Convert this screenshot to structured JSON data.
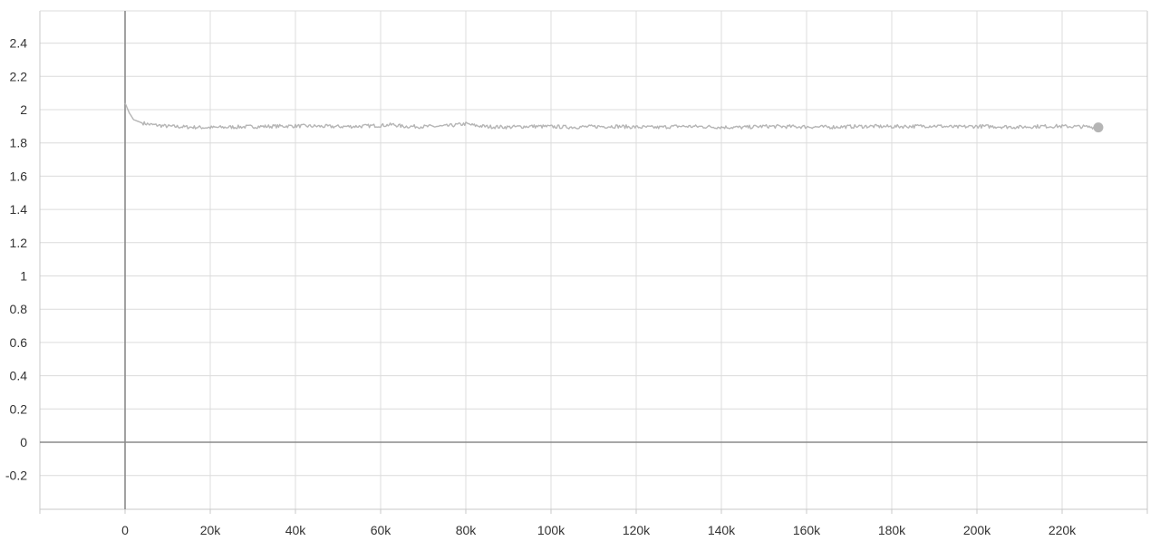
{
  "chart_data": {
    "type": "line",
    "title": "",
    "xlabel": "",
    "ylabel": "",
    "xlim": [
      -20000,
      240000
    ],
    "ylim": [
      -0.4,
      2.6
    ],
    "grid": true,
    "legend": "none",
    "x_ticks": [
      0,
      20000,
      40000,
      60000,
      80000,
      100000,
      120000,
      140000,
      160000,
      180000,
      200000,
      220000
    ],
    "x_tick_labels": [
      "0",
      "20k",
      "40k",
      "60k",
      "80k",
      "100k",
      "120k",
      "140k",
      "160k",
      "180k",
      "200k",
      "220k"
    ],
    "y_ticks": [
      -0.2,
      0,
      0.2,
      0.4,
      0.6,
      0.8,
      1.0,
      1.2,
      1.4,
      1.6,
      1.8,
      2.0,
      2.2,
      2.4
    ],
    "y_tick_labels": [
      "-0.2",
      "0",
      "0.2",
      "0.4",
      "0.6",
      "0.8",
      "1",
      "1.2",
      "1.4",
      "1.6",
      "1.8",
      "2",
      "2.2",
      "2.4"
    ],
    "series": [
      {
        "color": "#b5b5b5",
        "x": [
          0,
          500,
          1000,
          1500,
          2000,
          3000,
          4000,
          5000,
          6000,
          8000,
          10000,
          12000,
          15000,
          18000,
          20000,
          25000,
          30000,
          35000,
          40000,
          45000,
          50000,
          55000,
          60000,
          63000,
          65000,
          70000,
          75000,
          80000,
          82000,
          85000,
          90000,
          95000,
          100000,
          105000,
          110000,
          115000,
          120000,
          125000,
          130000,
          135000,
          140000,
          145000,
          150000,
          155000,
          160000,
          165000,
          170000,
          175000,
          180000,
          185000,
          190000,
          195000,
          200000,
          205000,
          210000,
          215000,
          220000,
          225000,
          228500
        ],
        "y": [
          2.04,
          2.01,
          1.98,
          1.96,
          1.94,
          1.93,
          1.92,
          1.915,
          1.91,
          1.905,
          1.9,
          1.898,
          1.895,
          1.893,
          1.892,
          1.895,
          1.898,
          1.9,
          1.902,
          1.9,
          1.898,
          1.9,
          1.905,
          1.91,
          1.9,
          1.898,
          1.9,
          1.915,
          1.905,
          1.898,
          1.895,
          1.9,
          1.898,
          1.895,
          1.898,
          1.9,
          1.895,
          1.893,
          1.9,
          1.898,
          1.895,
          1.893,
          1.9,
          1.898,
          1.897,
          1.895,
          1.898,
          1.9,
          1.898,
          1.9,
          1.903,
          1.895,
          1.9,
          1.898,
          1.895,
          1.9,
          1.9,
          1.897,
          1.893
        ],
        "last_point_marker": true
      }
    ]
  }
}
